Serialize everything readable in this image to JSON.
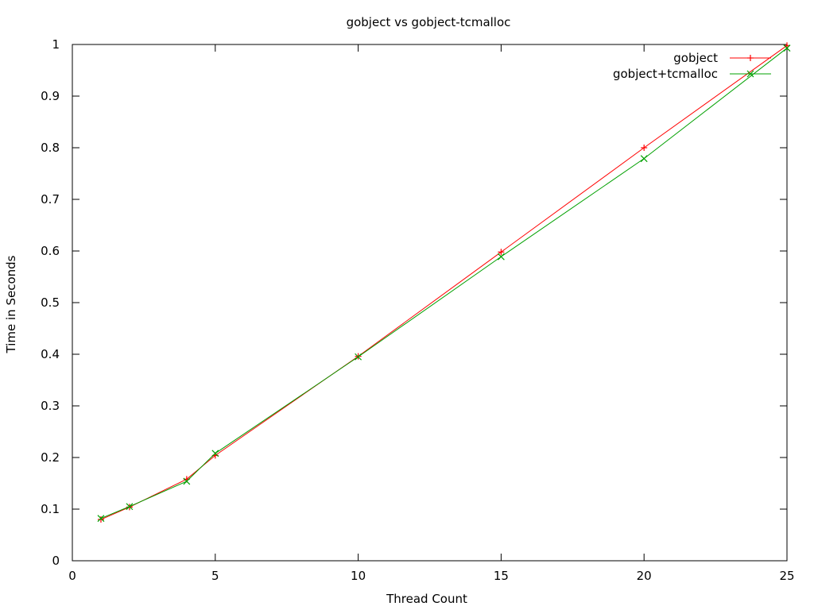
{
  "chart_data": {
    "type": "line",
    "title": "gobject vs gobject-tcmalloc",
    "xlabel": "Thread Count",
    "ylabel": "Time in Seconds",
    "xlim": [
      0,
      25
    ],
    "ylim": [
      0,
      1
    ],
    "xticks": [
      0,
      5,
      10,
      15,
      20,
      25
    ],
    "yticks": [
      0,
      0.1,
      0.2,
      0.3,
      0.4,
      0.5,
      0.6,
      0.7,
      0.8,
      0.9,
      1
    ],
    "grid": false,
    "legend_position": "top-right",
    "series": [
      {
        "name": "gobject",
        "color": "#ff0000",
        "marker": "plus",
        "x": [
          1,
          2,
          4,
          5,
          10,
          15,
          20,
          25
        ],
        "y": [
          0.08,
          0.104,
          0.158,
          0.204,
          0.396,
          0.598,
          0.8,
          0.998
        ]
      },
      {
        "name": "gobject+tcmalloc",
        "color": "#00a000",
        "marker": "cross",
        "x": [
          1,
          2,
          4,
          5,
          10,
          15,
          20,
          25
        ],
        "y": [
          0.082,
          0.105,
          0.154,
          0.208,
          0.395,
          0.589,
          0.779,
          0.993
        ]
      }
    ]
  }
}
